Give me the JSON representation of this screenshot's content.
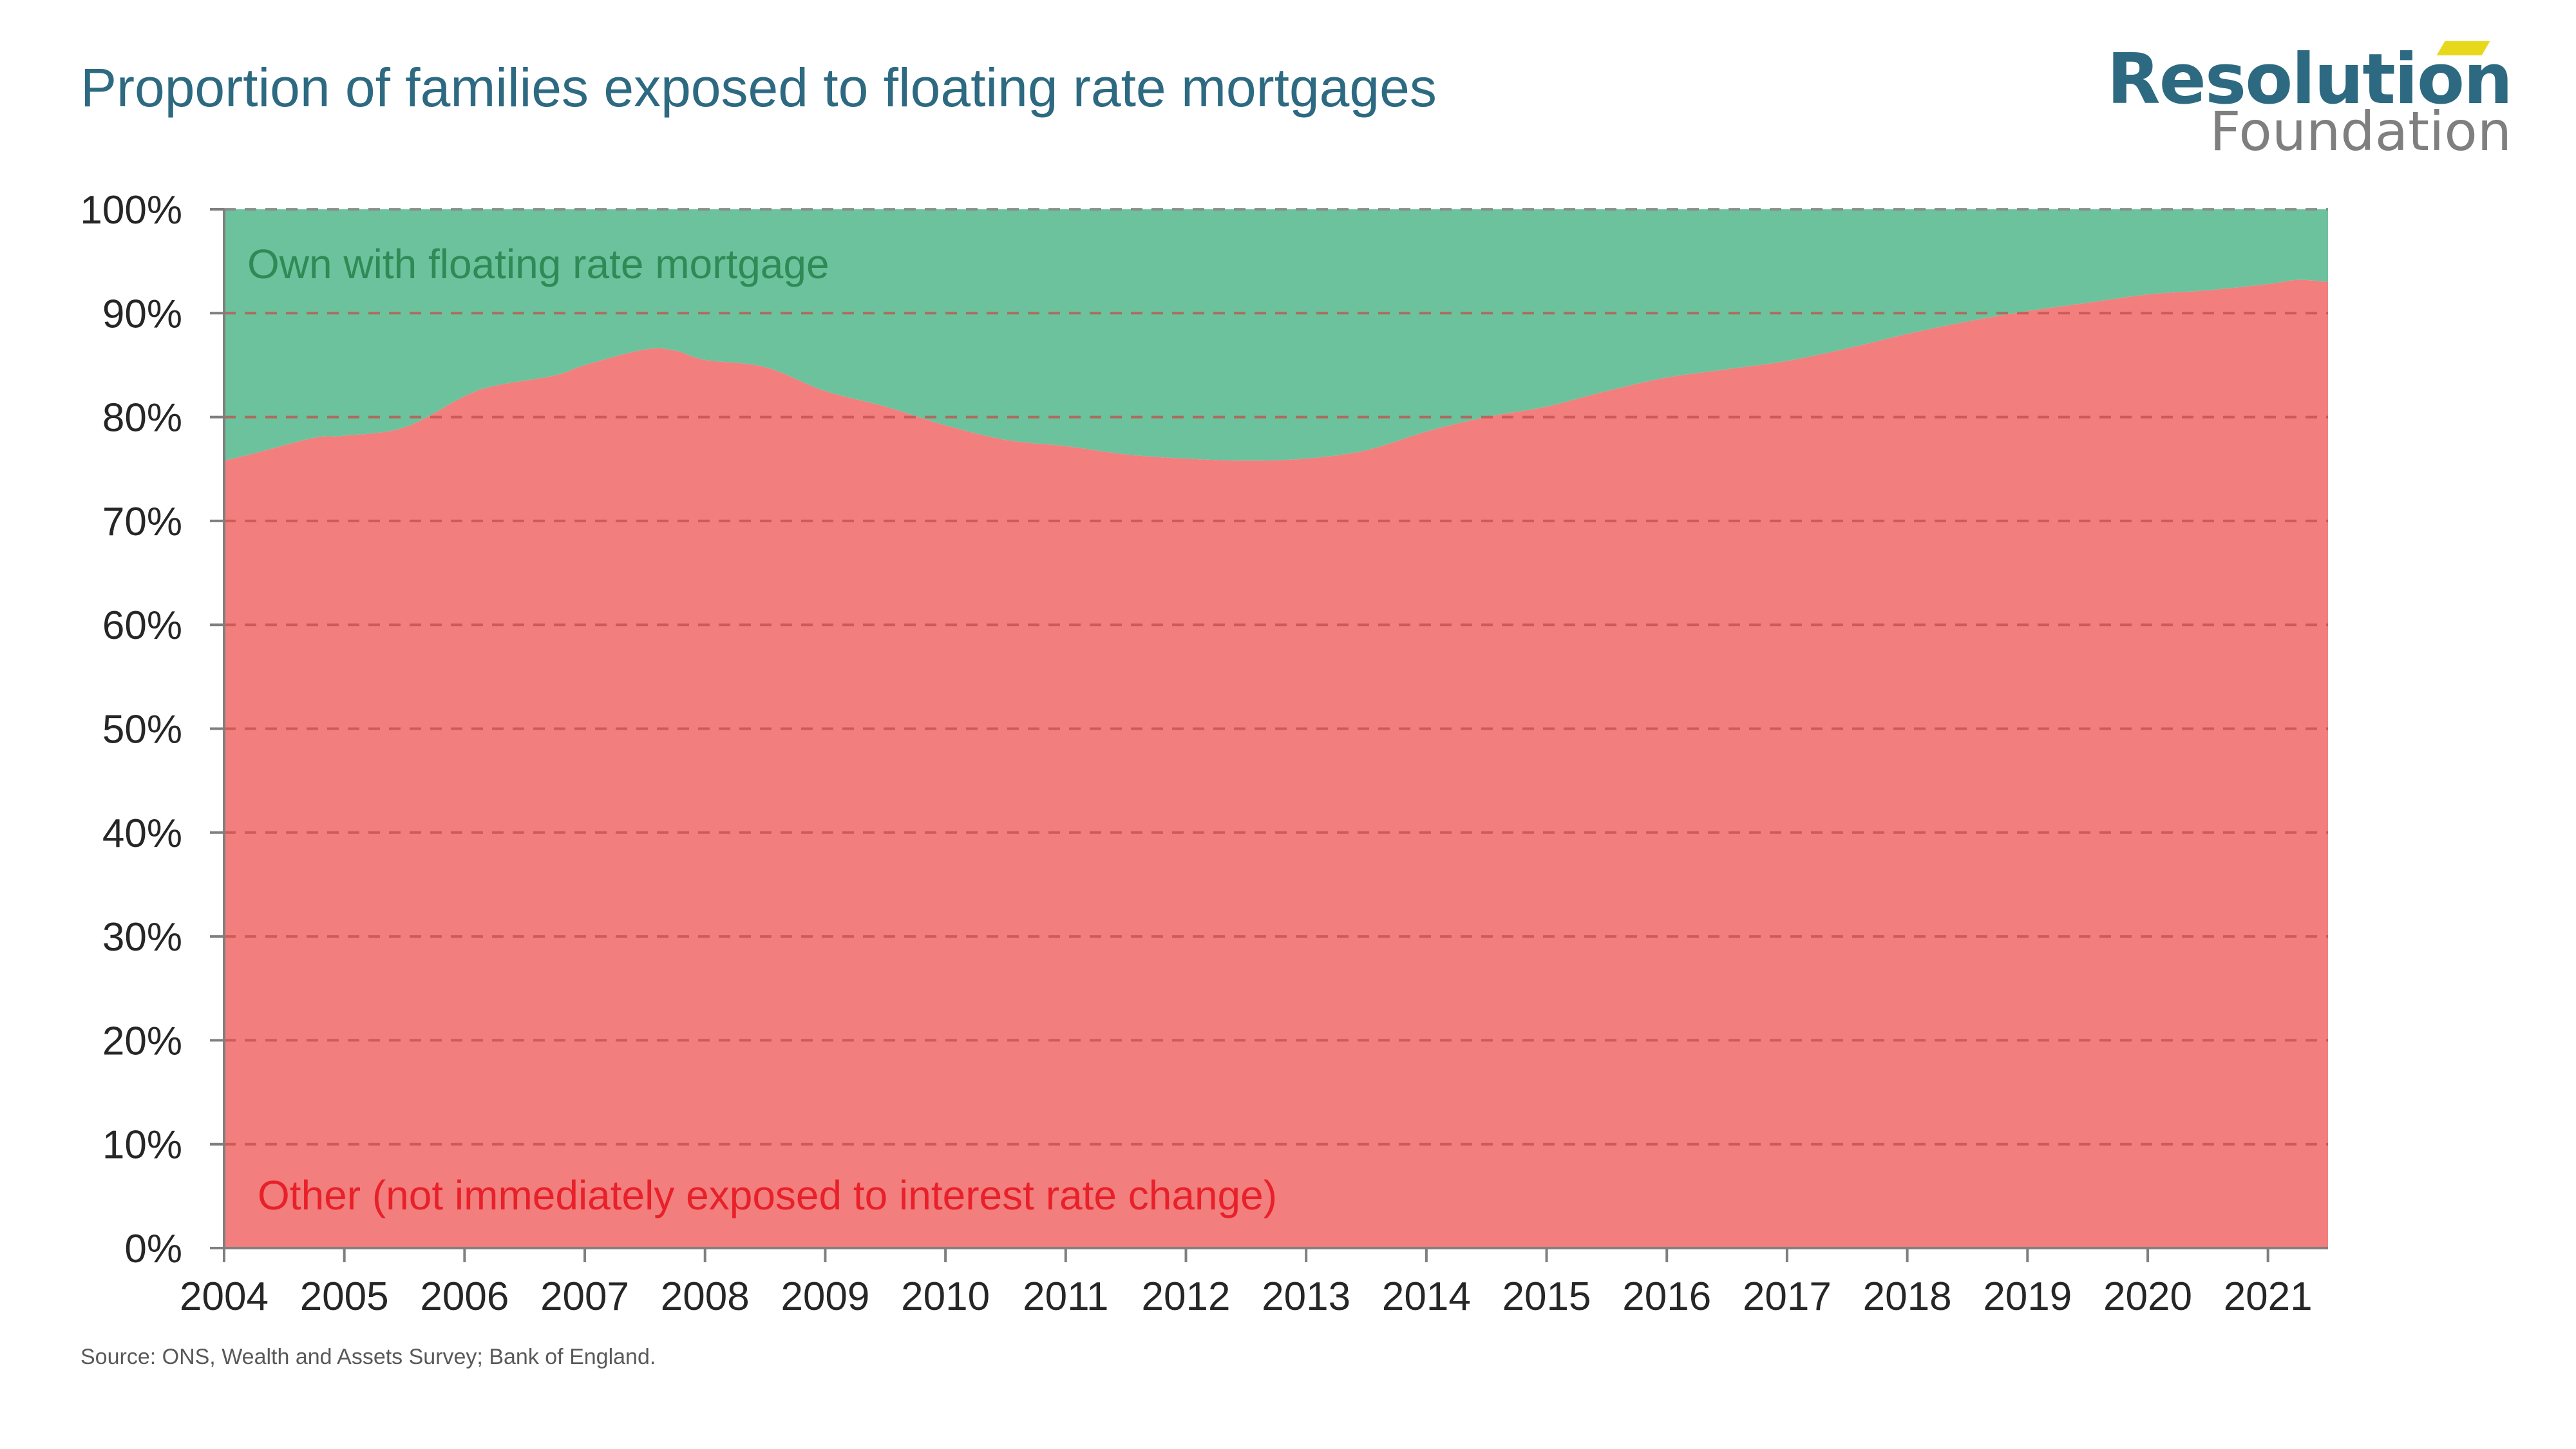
{
  "header": {
    "title": "Proportion of families exposed to floating rate mortgages"
  },
  "logo": {
    "line1": "Resolution",
    "line2": "Foundation"
  },
  "footer": {
    "source": "Source: ONS, Wealth and Assets Survey; Bank of England."
  },
  "colors": {
    "title": "#2d6a82",
    "floating": "#6cc29c",
    "other": "#f27f7d",
    "floating_label": "#2f8a56",
    "other_label": "#e8202a",
    "grid": "#c0504d"
  },
  "chart_data": {
    "type": "area",
    "stacked": true,
    "title": "Proportion of families exposed to floating rate mortgages",
    "xlabel": "",
    "ylabel": "",
    "xlim": [
      2004,
      2021.5
    ],
    "ylim": [
      0,
      100
    ],
    "x_ticks": [
      "2004",
      "2005",
      "2006",
      "2007",
      "2008",
      "2009",
      "2010",
      "2011",
      "2012",
      "2013",
      "2014",
      "2015",
      "2016",
      "2017",
      "2018",
      "2019",
      "2020",
      "2021"
    ],
    "x_tick_values": [
      2004,
      2005,
      2006,
      2007,
      2008,
      2009,
      2010,
      2011,
      2012,
      2013,
      2014,
      2015,
      2016,
      2017,
      2018,
      2019,
      2020,
      2021
    ],
    "y_ticks": [
      "0%",
      "10%",
      "20%",
      "30%",
      "40%",
      "50%",
      "60%",
      "70%",
      "80%",
      "90%",
      "100%"
    ],
    "y_tick_values": [
      0,
      10,
      20,
      30,
      40,
      50,
      60,
      70,
      80,
      90,
      100
    ],
    "grid": "dashed-horizontal",
    "x": [
      2004.0,
      2004.25,
      2004.75,
      2005.0,
      2005.5,
      2006.0,
      2006.25,
      2006.75,
      2007.0,
      2007.5,
      2007.75,
      2008.0,
      2008.5,
      2009.0,
      2009.5,
      2010.0,
      2010.5,
      2011.0,
      2011.5,
      2012.0,
      2012.5,
      2013.0,
      2013.5,
      2014.0,
      2014.5,
      2015.0,
      2015.5,
      2016.0,
      2016.5,
      2017.0,
      2017.5,
      2018.0,
      2018.5,
      2019.0,
      2019.5,
      2020.0,
      2020.5,
      2021.0,
      2021.25,
      2021.5
    ],
    "series": [
      {
        "name": "Other (not immediately exposed to interest rate change)",
        "values": [
          75.8,
          76.5,
          78.0,
          78.2,
          79.0,
          82.0,
          83.0,
          84.0,
          85.0,
          86.5,
          86.4,
          85.5,
          84.8,
          82.5,
          81.0,
          79.2,
          77.8,
          77.2,
          76.4,
          76.0,
          75.8,
          76.0,
          76.8,
          78.6,
          80.0,
          81.0,
          82.5,
          83.8,
          84.6,
          85.4,
          86.6,
          88.0,
          89.2,
          90.2,
          91.0,
          91.8,
          92.2,
          92.8,
          93.2,
          93.0
        ]
      },
      {
        "name": "Own with floating rate mortgage",
        "values": [
          24.2,
          23.5,
          22.0,
          21.8,
          21.0,
          18.0,
          17.0,
          16.0,
          15.0,
          13.5,
          13.6,
          14.5,
          15.2,
          17.5,
          19.0,
          20.8,
          22.2,
          22.8,
          23.6,
          24.0,
          24.2,
          24.0,
          23.2,
          21.4,
          20.0,
          19.0,
          17.5,
          16.2,
          15.4,
          14.6,
          13.4,
          12.0,
          10.8,
          9.8,
          9.0,
          8.2,
          7.8,
          7.2,
          6.8,
          7.0
        ]
      }
    ],
    "annotations": [
      "Own with floating rate mortgage",
      "Other (not immediately exposed to interest rate change)"
    ]
  }
}
